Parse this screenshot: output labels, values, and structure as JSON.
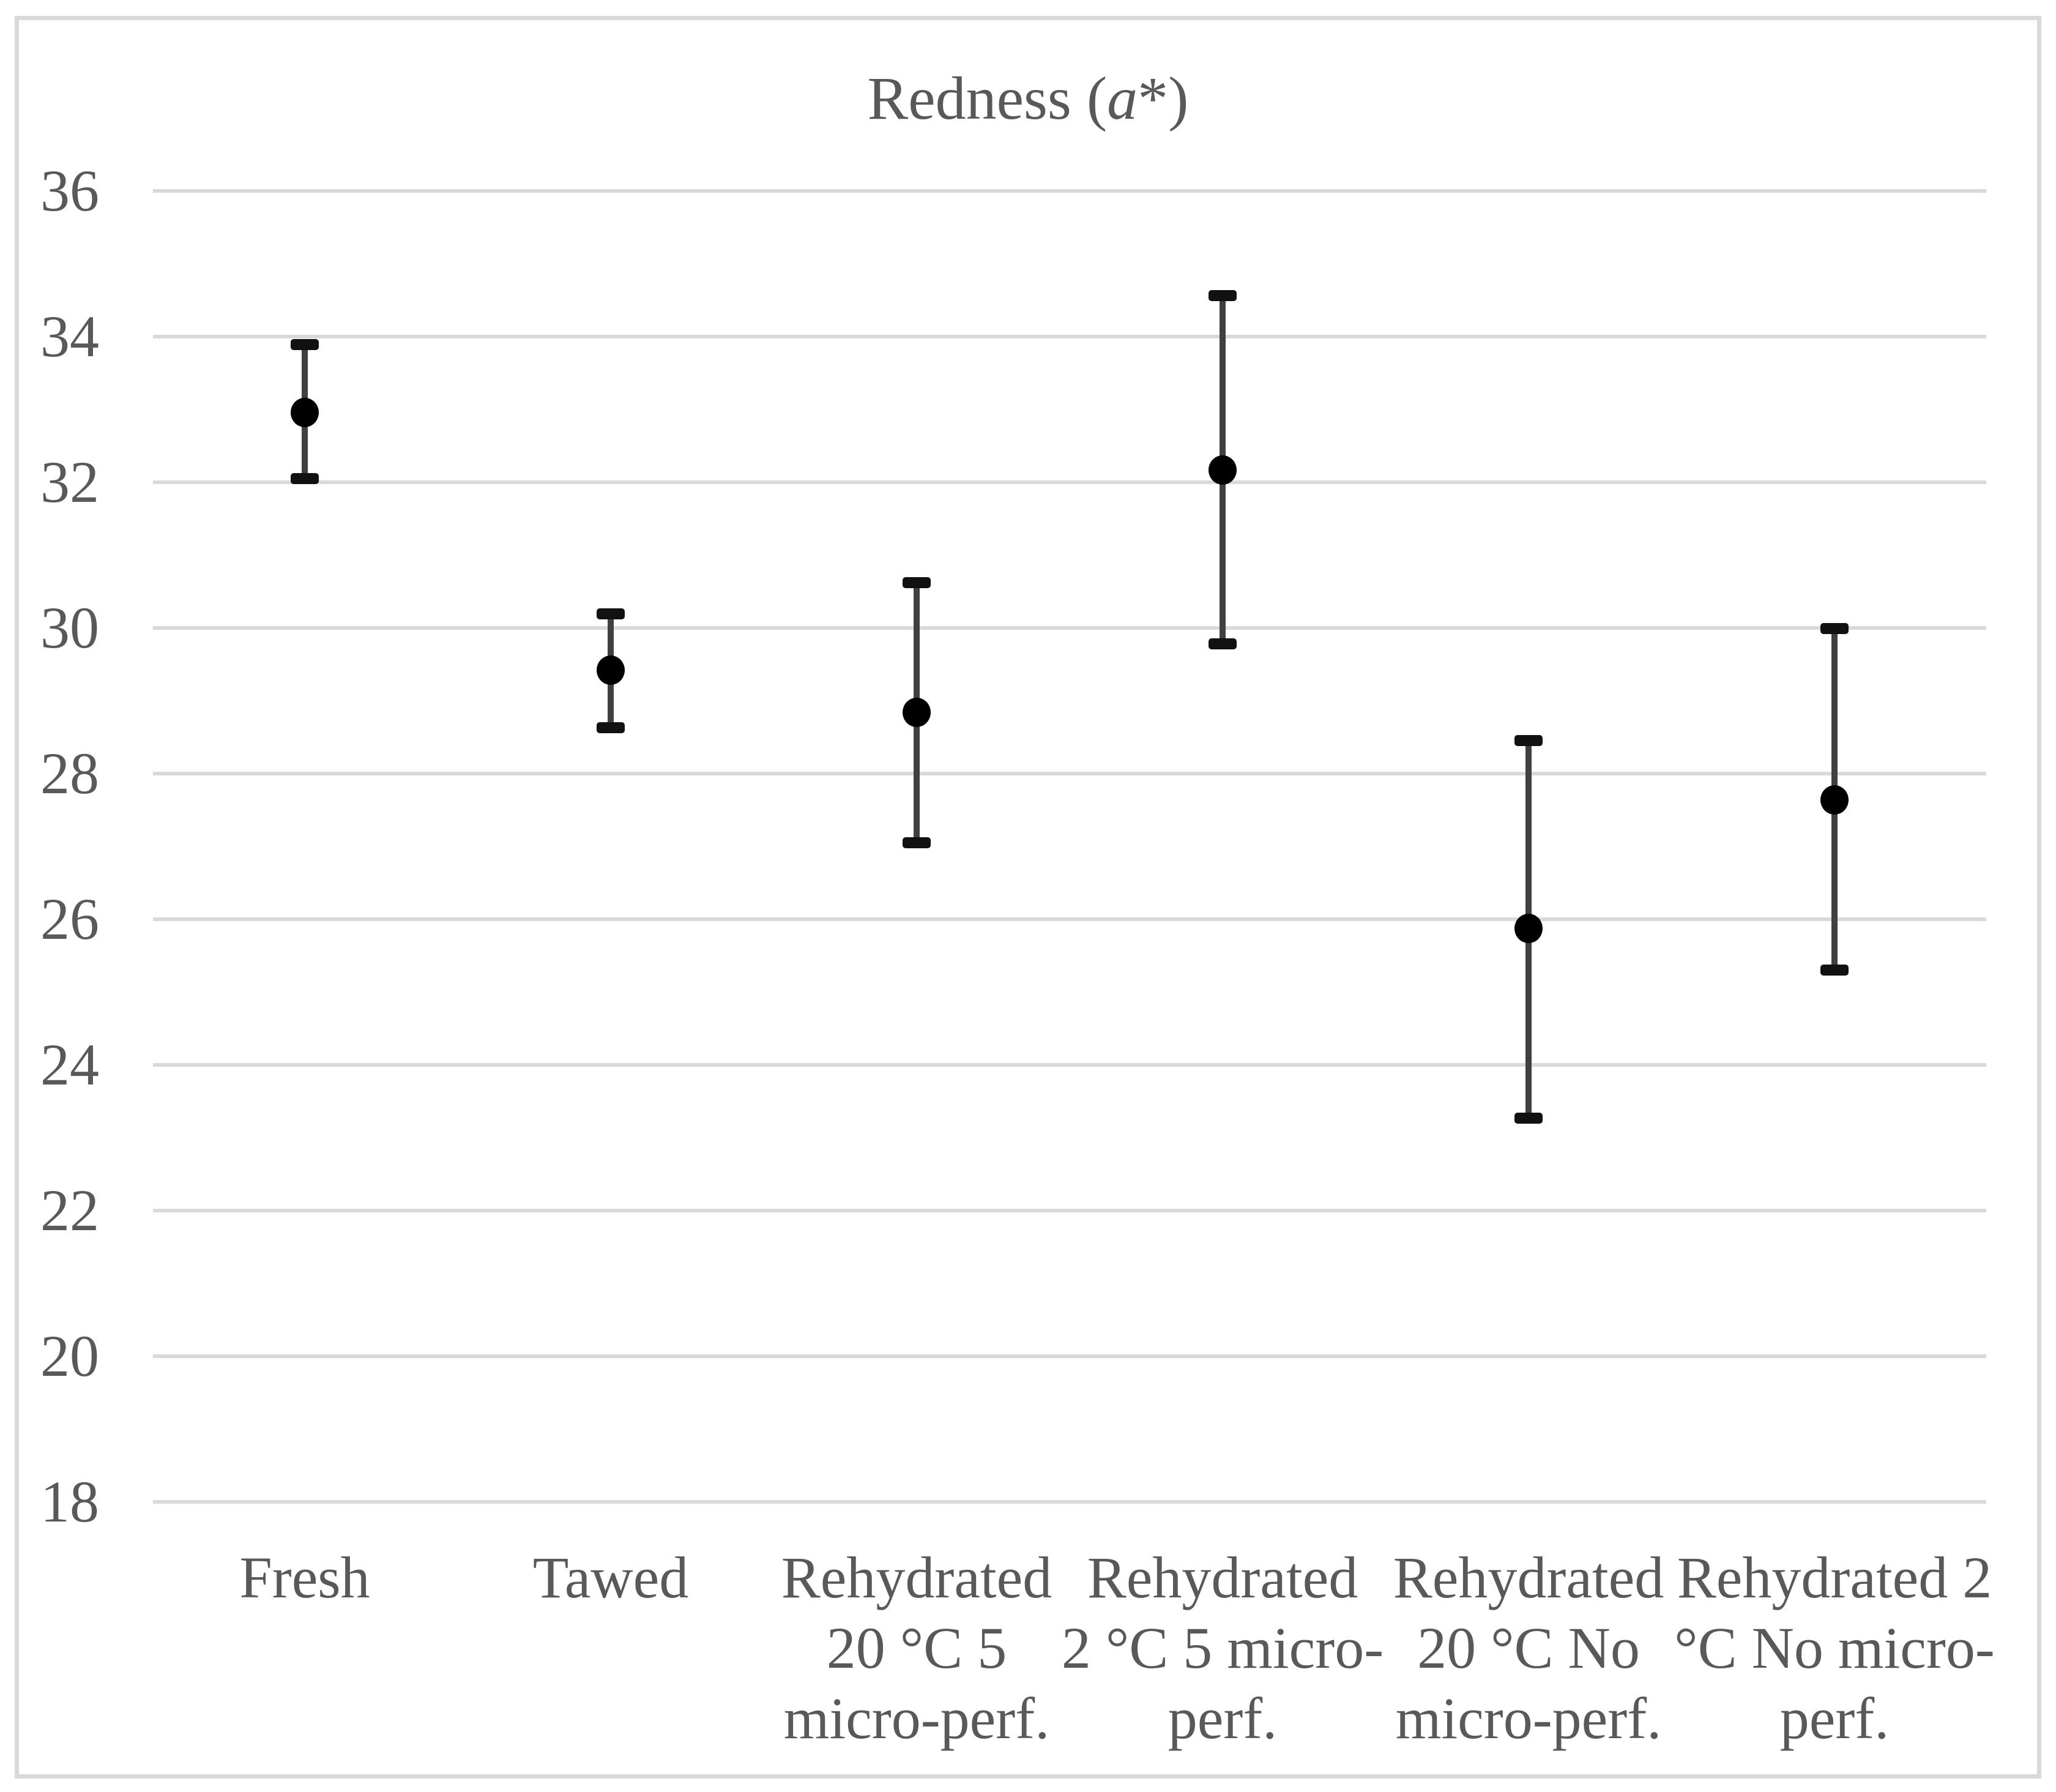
{
  "title": {
    "prefix": "Redness (",
    "italic_var": "a",
    "suffix": "*)"
  },
  "colors": {
    "text": "#595959",
    "gridline": "#D9D9D9",
    "frame_border": "#D9D9D9",
    "error_bar_line": "#404040",
    "error_bar_cap": "#111111",
    "marker": "#000000",
    "background": "#ffffff"
  },
  "y_axis": {
    "tick_labels": [
      "36",
      "34",
      "32",
      "30",
      "28",
      "26",
      "24",
      "22",
      "20",
      "18"
    ],
    "min": 18,
    "max": 36,
    "step": 2
  },
  "chart_data": {
    "type": "scatter",
    "subtype": "mean-dot-with-error-bars",
    "title": "Redness (a*)",
    "xlabel": "",
    "ylabel": "",
    "ylim": [
      18,
      36
    ],
    "grid": "horizontal-only",
    "legend": "none",
    "categories": [
      "Fresh",
      "Tawed",
      "Rehydrated 20 °C 5 micro-perf.",
      "Rehydrated 2 °C 5 micro-perf.",
      "Rehydrated 20 °C No micro-perf.",
      "Rehydrated 2 °C No micro-perf."
    ],
    "category_label_lines": [
      "Fresh",
      "Tawed",
      "Rehydrated\n20 °C 5\nmicro-perf.",
      "Rehydrated\n2 °C 5 micro-\nperf.",
      "Rehydrated\n20 °C No\nmicro-perf.",
      "Rehydrated 2\n°C No micro-\nperf."
    ],
    "series": [
      {
        "name": "mean",
        "values": [
          32.96,
          29.42,
          28.84,
          32.17,
          25.87,
          27.64
        ]
      },
      {
        "name": "error_upper",
        "values": [
          33.89,
          30.19,
          30.62,
          34.56,
          28.45,
          29.99
        ]
      },
      {
        "name": "error_lower",
        "values": [
          32.05,
          28.63,
          27.05,
          29.78,
          23.27,
          25.3
        ]
      }
    ]
  }
}
